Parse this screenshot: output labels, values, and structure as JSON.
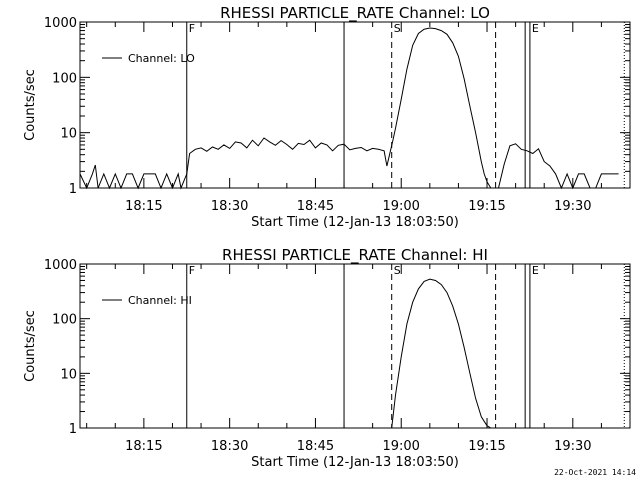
{
  "footer_date": "22-Oct-2021 14:14",
  "chart_data": [
    {
      "type": "line",
      "title": "RHESSI PARTICLE_RATE Channel: LO",
      "xlabel": "Start Time (12-Jan-13 18:03:50)",
      "ylabel": "Counts/sec",
      "yscale": "log",
      "ylim": [
        1,
        1000
      ],
      "ytick_labels": [
        "1",
        "10",
        "100",
        "1000"
      ],
      "xlim": [
        "18:03:50",
        "19:40:00"
      ],
      "xtick_labels": [
        "18:15",
        "18:30",
        "18:45",
        "19:00",
        "19:15",
        "19:30"
      ],
      "legend": "top-left",
      "grid": false,
      "series": [
        {
          "name": "Channel: LO",
          "x": [
            "18:03:50",
            "18:05:00",
            "18:06:00",
            "18:06:30",
            "18:07:00",
            "18:08:00",
            "18:09:00",
            "18:10:00",
            "18:11:00",
            "18:12:00",
            "18:13:00",
            "18:14:00",
            "18:15:00",
            "18:16:00",
            "18:17:00",
            "18:18:00",
            "18:19:00",
            "18:20:00",
            "18:21:00",
            "18:21:30",
            "18:22:30",
            "18:23:00",
            "18:24:00",
            "18:25:00",
            "18:26:00",
            "18:27:00",
            "18:28:00",
            "18:29:00",
            "18:30:00",
            "18:31:00",
            "18:32:00",
            "18:33:00",
            "18:34:00",
            "18:35:00",
            "18:36:00",
            "18:37:00",
            "18:38:00",
            "18:39:00",
            "18:40:00",
            "18:41:00",
            "18:42:00",
            "18:43:00",
            "18:44:00",
            "18:45:00",
            "18:46:00",
            "18:47:00",
            "18:48:00",
            "18:49:00",
            "18:50:00",
            "18:51:00",
            "18:52:00",
            "18:53:00",
            "18:54:00",
            "18:55:00",
            "18:56:00",
            "18:57:00",
            "18:57:30",
            "18:58:30",
            "18:59:00",
            "19:00:00",
            "19:01:00",
            "19:02:00",
            "19:03:00",
            "19:04:00",
            "19:05:00",
            "19:06:00",
            "19:07:00",
            "19:08:00",
            "19:09:00",
            "19:10:00",
            "19:11:00",
            "19:12:00",
            "19:13:00",
            "19:14:00",
            "19:14:30",
            "19:15:00",
            "19:15:40",
            "19:16:30",
            "19:17:00",
            "19:18:00",
            "19:19:00",
            "19:20:00",
            "19:21:00",
            "19:22:00",
            "19:23:00",
            "19:24:00",
            "19:25:00",
            "19:26:00",
            "19:27:00",
            "19:28:00",
            "19:29:00",
            "19:30:00",
            "19:31:00",
            "19:32:00",
            "19:33:00",
            "19:34:00",
            "19:35:00",
            "19:36:00",
            "19:37:00",
            "19:38:00"
          ],
          "values": [
            1.8,
            1,
            1.8,
            2.6,
            1,
            1.8,
            1,
            1.8,
            1,
            1.8,
            1.8,
            1,
            1.8,
            1.8,
            1.8,
            1,
            1.8,
            1,
            1.8,
            1,
            1.8,
            4.2,
            5,
            5.3,
            4.6,
            5.5,
            5,
            6,
            5.2,
            6.8,
            6.5,
            5.3,
            7.3,
            5.8,
            8,
            6.8,
            5.9,
            7.2,
            6.1,
            5,
            6.4,
            6.1,
            7.3,
            5.3,
            6.5,
            6,
            4.7,
            5.9,
            6.2,
            4.9,
            5.2,
            5.4,
            4.7,
            5.2,
            5,
            4.7,
            2.5,
            7,
            12,
            40,
            140,
            380,
            620,
            740,
            780,
            760,
            700,
            600,
            420,
            240,
            95,
            30,
            10,
            3,
            1.8,
            1.3,
            1,
            1,
            1,
            2.7,
            5.8,
            6.3,
            5,
            4.7,
            4.2,
            5.1,
            3,
            2.5,
            1.8,
            1,
            1.8,
            1,
            1.8,
            1.8,
            1,
            1,
            1.8,
            1.8,
            1.8,
            1.8
          ]
        }
      ],
      "markers": [
        {
          "time": "18:22:30",
          "style": "solid",
          "label": "F"
        },
        {
          "time": "18:50:00",
          "style": "solid",
          "label": ""
        },
        {
          "time": "18:58:20",
          "style": "dashed",
          "label": "S"
        },
        {
          "time": "19:16:30",
          "style": "dashed",
          "label": ""
        },
        {
          "time": "19:21:40",
          "style": "solid",
          "label": ""
        },
        {
          "time": "19:22:30",
          "style": "solid",
          "label": "E"
        },
        {
          "time": "19:39:00",
          "style": "dotted",
          "label": ""
        }
      ]
    },
    {
      "type": "line",
      "title": "RHESSI PARTICLE_RATE Channel: HI",
      "xlabel": "Start Time (12-Jan-13 18:03:50)",
      "ylabel": "Counts/sec",
      "yscale": "log",
      "ylim": [
        1,
        1000
      ],
      "ytick_labels": [
        "1",
        "10",
        "100",
        "1000"
      ],
      "xlim": [
        "18:03:50",
        "19:40:00"
      ],
      "xtick_labels": [
        "18:15",
        "18:30",
        "18:45",
        "19:00",
        "19:15",
        "19:30"
      ],
      "legend": "top-left",
      "grid": false,
      "series": [
        {
          "name": "Channel: HI",
          "x": [
            "18:58:20",
            "18:59:00",
            "19:00:00",
            "19:01:00",
            "19:02:00",
            "19:03:00",
            "19:04:00",
            "19:05:00",
            "19:06:00",
            "19:07:00",
            "19:08:00",
            "19:09:00",
            "19:10:00",
            "19:11:00",
            "19:12:00",
            "19:13:00",
            "19:14:00",
            "19:15:00",
            "19:15:40"
          ],
          "values": [
            1,
            4,
            20,
            80,
            200,
            350,
            480,
            530,
            500,
            420,
            300,
            170,
            80,
            30,
            10,
            3.5,
            1.6,
            1.1,
            1
          ]
        }
      ],
      "markers": [
        {
          "time": "18:22:30",
          "style": "solid",
          "label": "F"
        },
        {
          "time": "18:50:00",
          "style": "solid",
          "label": ""
        },
        {
          "time": "18:58:20",
          "style": "dashed",
          "label": "S"
        },
        {
          "time": "19:16:30",
          "style": "dashed",
          "label": ""
        },
        {
          "time": "19:21:40",
          "style": "solid",
          "label": ""
        },
        {
          "time": "19:22:30",
          "style": "solid",
          "label": "E"
        },
        {
          "time": "19:39:00",
          "style": "dotted",
          "label": ""
        }
      ]
    }
  ]
}
